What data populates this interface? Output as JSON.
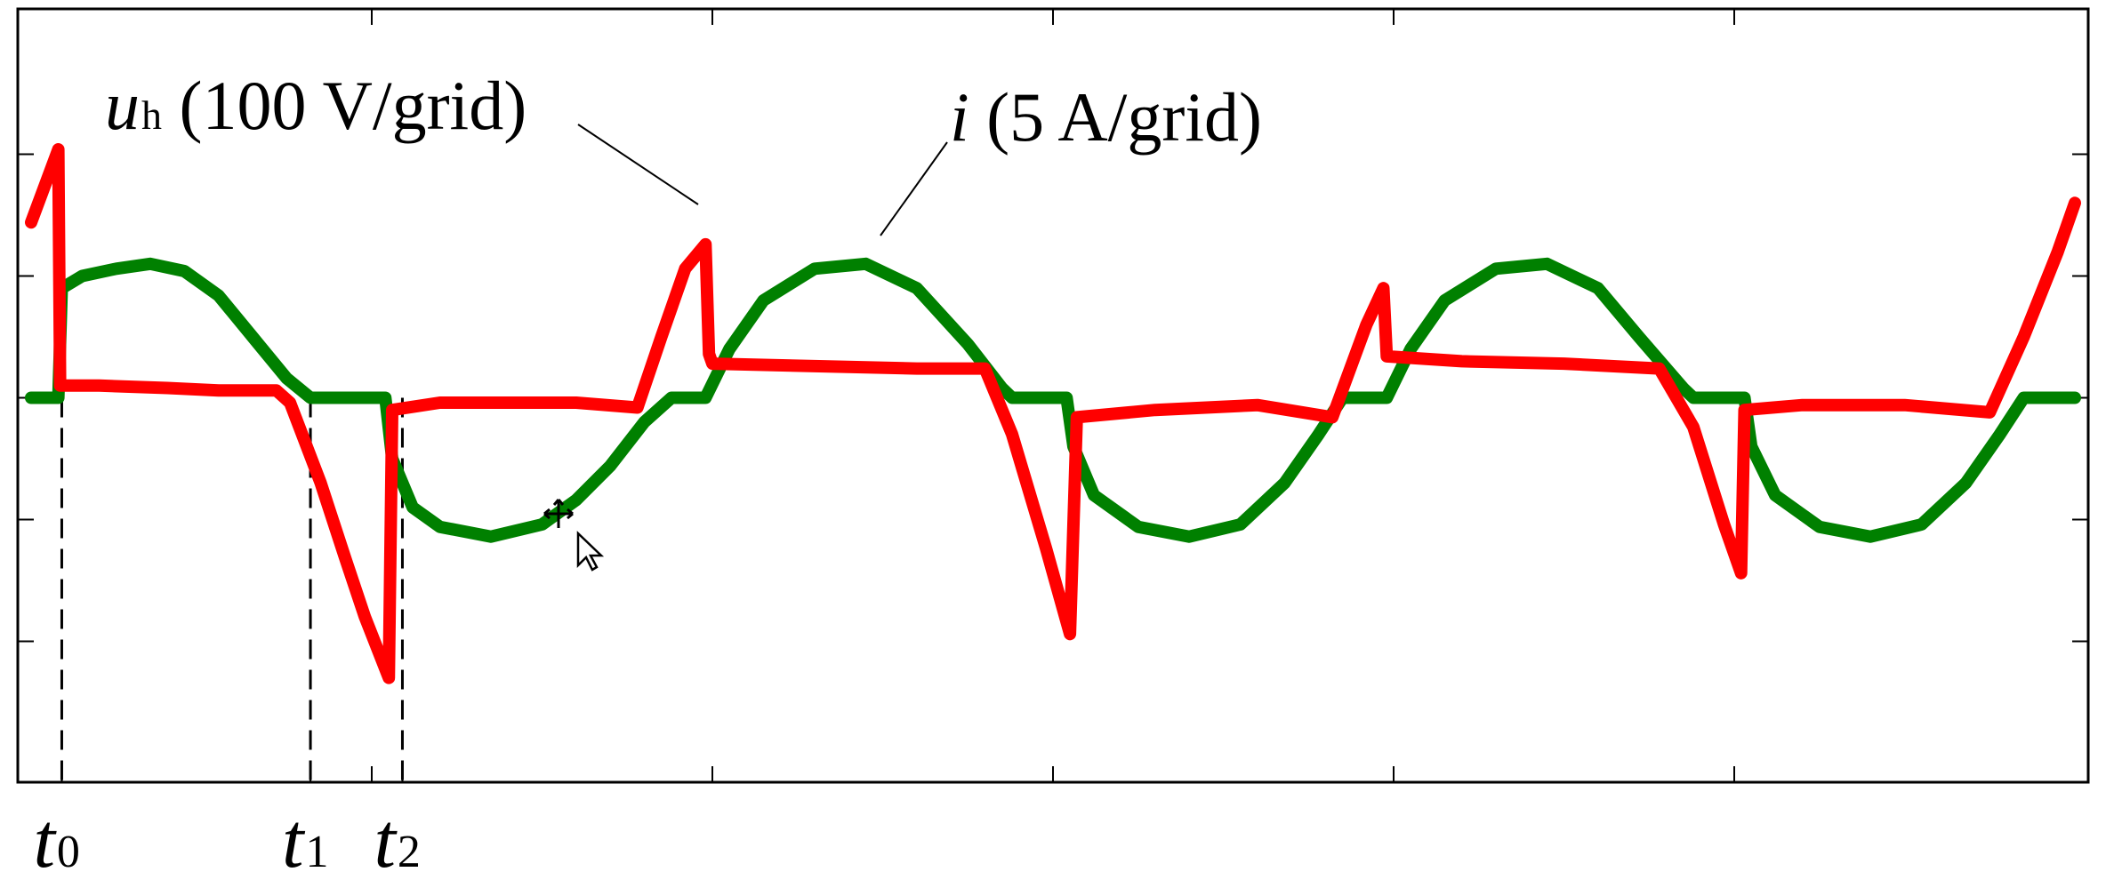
{
  "chart_data": {
    "type": "line",
    "title": "",
    "xlabel": "",
    "ylabel": "",
    "xlim": [
      0,
      6
    ],
    "ylim": [
      -1.25,
      1.25
    ],
    "grid": false,
    "series": [
      {
        "name_parts": [
          "u",
          "h",
          " (100 V/grid)"
        ],
        "color": "#ff0000",
        "points": [
          [
            0.0,
            0.72
          ],
          [
            0.08,
            1.02
          ],
          [
            0.085,
            0.05
          ],
          [
            0.2,
            0.05
          ],
          [
            0.4,
            0.04
          ],
          [
            0.55,
            0.03
          ],
          [
            0.72,
            0.03
          ],
          [
            0.76,
            -0.02
          ],
          [
            0.85,
            -0.35
          ],
          [
            0.92,
            -0.65
          ],
          [
            0.98,
            -0.9
          ],
          [
            1.05,
            -1.15
          ],
          [
            1.06,
            -0.05
          ],
          [
            1.2,
            -0.02
          ],
          [
            1.4,
            -0.02
          ],
          [
            1.6,
            -0.02
          ],
          [
            1.78,
            -0.04
          ],
          [
            1.85,
            0.25
          ],
          [
            1.92,
            0.53
          ],
          [
            1.98,
            0.63
          ],
          [
            1.99,
            0.18
          ],
          [
            2.0,
            0.14
          ],
          [
            2.3,
            0.13
          ],
          [
            2.6,
            0.12
          ],
          [
            2.8,
            0.12
          ],
          [
            2.88,
            -0.15
          ],
          [
            2.98,
            -0.62
          ],
          [
            3.05,
            -0.97
          ],
          [
            3.07,
            -0.08
          ],
          [
            3.3,
            -0.05
          ],
          [
            3.6,
            -0.03
          ],
          [
            3.82,
            -0.08
          ],
          [
            3.92,
            0.3
          ],
          [
            3.97,
            0.45
          ],
          [
            3.98,
            0.17
          ],
          [
            4.2,
            0.15
          ],
          [
            4.5,
            0.14
          ],
          [
            4.78,
            0.12
          ],
          [
            4.88,
            -0.12
          ],
          [
            4.97,
            -0.52
          ],
          [
            5.02,
            -0.72
          ],
          [
            5.03,
            -0.05
          ],
          [
            5.2,
            -0.03
          ],
          [
            5.5,
            -0.03
          ],
          [
            5.75,
            -0.06
          ],
          [
            5.85,
            0.25
          ],
          [
            5.95,
            0.6
          ],
          [
            6.0,
            0.8
          ]
        ]
      },
      {
        "name_parts": [
          "i",
          "",
          " (5 A/grid)"
        ],
        "color": "#008000",
        "points": [
          [
            0.0,
            0.0
          ],
          [
            0.08,
            0.0
          ],
          [
            0.09,
            0.45
          ],
          [
            0.15,
            0.5
          ],
          [
            0.25,
            0.53
          ],
          [
            0.35,
            0.55
          ],
          [
            0.45,
            0.52
          ],
          [
            0.55,
            0.42
          ],
          [
            0.65,
            0.25
          ],
          [
            0.75,
            0.08
          ],
          [
            0.82,
            0.0
          ],
          [
            1.0,
            0.0
          ],
          [
            1.02,
            0.0
          ],
          [
            1.04,
            0.0
          ],
          [
            1.06,
            -0.25
          ],
          [
            1.12,
            -0.45
          ],
          [
            1.2,
            -0.53
          ],
          [
            1.35,
            -0.57
          ],
          [
            1.5,
            -0.52
          ],
          [
            1.6,
            -0.42
          ],
          [
            1.7,
            -0.28
          ],
          [
            1.8,
            -0.1
          ],
          [
            1.88,
            0.0
          ],
          [
            1.98,
            0.0
          ],
          [
            2.05,
            0.2
          ],
          [
            2.15,
            0.4
          ],
          [
            2.3,
            0.53
          ],
          [
            2.45,
            0.55
          ],
          [
            2.6,
            0.45
          ],
          [
            2.75,
            0.22
          ],
          [
            2.85,
            0.04
          ],
          [
            2.88,
            0.0
          ],
          [
            3.04,
            0.0
          ],
          [
            3.06,
            -0.2
          ],
          [
            3.12,
            -0.4
          ],
          [
            3.25,
            -0.53
          ],
          [
            3.4,
            -0.57
          ],
          [
            3.55,
            -0.52
          ],
          [
            3.68,
            -0.35
          ],
          [
            3.78,
            -0.15
          ],
          [
            3.85,
            0.0
          ],
          [
            3.98,
            0.0
          ],
          [
            4.05,
            0.2
          ],
          [
            4.15,
            0.4
          ],
          [
            4.3,
            0.53
          ],
          [
            4.45,
            0.55
          ],
          [
            4.6,
            0.45
          ],
          [
            4.72,
            0.25
          ],
          [
            4.85,
            0.04
          ],
          [
            4.88,
            0.0
          ],
          [
            5.03,
            0.0
          ],
          [
            5.05,
            -0.2
          ],
          [
            5.12,
            -0.4
          ],
          [
            5.25,
            -0.53
          ],
          [
            5.4,
            -0.57
          ],
          [
            5.55,
            -0.52
          ],
          [
            5.68,
            -0.35
          ],
          [
            5.78,
            -0.15
          ],
          [
            5.85,
            0.0
          ],
          [
            6.0,
            0.0
          ]
        ]
      }
    ],
    "markers": [
      {
        "letter": "t",
        "sub": "0",
        "x": 0.09
      },
      {
        "letter": "t",
        "sub": "1",
        "x": 0.82
      },
      {
        "letter": "t",
        "sub": "2",
        "x": 1.09
      }
    ],
    "x_ticks": [
      1.0,
      2.0,
      3.0,
      4.0,
      5.0
    ],
    "extra_x_ticks": [
      1.0
    ],
    "y_ticks": [
      -1.0,
      -0.5,
      0.0,
      0.5,
      1.0
    ]
  }
}
